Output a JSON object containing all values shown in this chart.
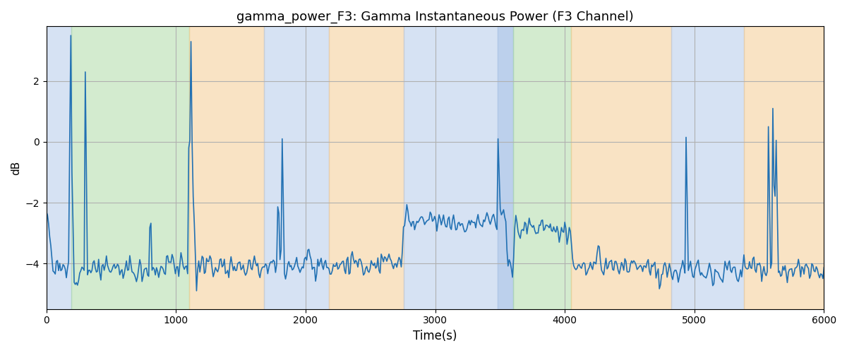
{
  "title": "gamma_power_F3: Gamma Instantaneous Power (F3 Channel)",
  "xlabel": "Time(s)",
  "ylabel": "dB",
  "xlim": [
    0,
    6000
  ],
  "ylim": [
    -5.5,
    3.8
  ],
  "line_color": "#2271b3",
  "line_width": 1.2,
  "figsize": [
    12.0,
    5.0
  ],
  "dpi": 100,
  "regions": [
    {
      "xmin": 0,
      "xmax": 190,
      "color": "#aec6e8",
      "alpha": 0.5
    },
    {
      "xmin": 190,
      "xmax": 1100,
      "color": "#a8d8a0",
      "alpha": 0.5
    },
    {
      "xmin": 1100,
      "xmax": 1680,
      "color": "#f5c98a",
      "alpha": 0.5
    },
    {
      "xmin": 1680,
      "xmax": 2180,
      "color": "#aec6e8",
      "alpha": 0.5
    },
    {
      "xmin": 2180,
      "xmax": 2760,
      "color": "#f5c98a",
      "alpha": 0.5
    },
    {
      "xmin": 2760,
      "xmax": 3480,
      "color": "#aec6e8",
      "alpha": 0.5
    },
    {
      "xmin": 3480,
      "xmax": 3600,
      "color": "#aec6e8",
      "alpha": 0.82
    },
    {
      "xmin": 3600,
      "xmax": 4050,
      "color": "#a8d8a0",
      "alpha": 0.5
    },
    {
      "xmin": 4050,
      "xmax": 4820,
      "color": "#f5c98a",
      "alpha": 0.5
    },
    {
      "xmin": 4820,
      "xmax": 5380,
      "color": "#aec6e8",
      "alpha": 0.5
    },
    {
      "xmin": 5380,
      "xmax": 6000,
      "color": "#f5c98a",
      "alpha": 0.5
    }
  ],
  "yticks": [
    -4,
    -2,
    0,
    2
  ],
  "xticks": [
    0,
    1000,
    2000,
    3000,
    4000,
    5000,
    6000
  ],
  "grid_color": "#b0b0b0",
  "grid_lw": 0.8,
  "n_points": 700,
  "seed": 12
}
